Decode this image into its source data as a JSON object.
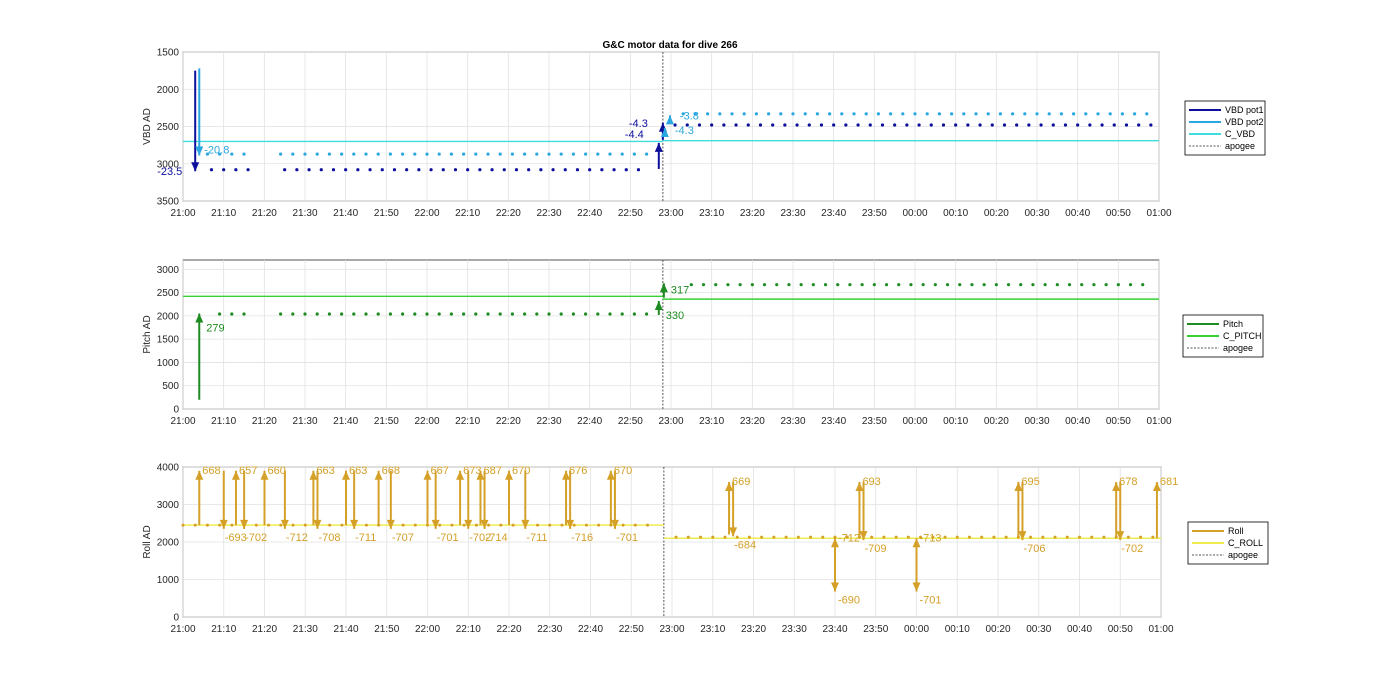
{
  "figure": {
    "title": "G&C motor data for dive 266"
  },
  "chart_data": [
    {
      "type": "line",
      "title": "G&C motor data for dive 266",
      "ylabel": "VBD AD",
      "ylim": [
        1500,
        3500
      ],
      "y_reversed": true,
      "yticks": [
        "1500",
        "2000",
        "2500",
        "3000",
        "3500"
      ],
      "xlim": [
        "21:00",
        "01:00"
      ],
      "xticks": [
        "21:00",
        "21:10",
        "21:20",
        "21:30",
        "21:40",
        "21:50",
        "22:00",
        "22:10",
        "22:20",
        "22:30",
        "22:40",
        "22:50",
        "23:00",
        "23:10",
        "23:20",
        "23:30",
        "23:40",
        "23:50",
        "00:00",
        "00:10",
        "00:20",
        "00:30",
        "00:40",
        "00:50",
        "01:00"
      ],
      "grid": true,
      "legend_location": "outside-right",
      "legend": [
        "VBD pot1",
        "VBD pot2",
        "C_VBD",
        "apogee"
      ],
      "colors": {
        "pot1": "#0d0f9b",
        "pot2": "#2aa7e0",
        "c_vbd": "#3fdcdc",
        "apogee": "#555555"
      },
      "apogee_time": "22:58",
      "c_vbd": [
        {
          "from": "21:00",
          "to": "22:58",
          "value": 2700
        },
        {
          "from": "22:58",
          "to": "01:00",
          "value": 2690
        }
      ],
      "pot1_dive_level": 3080,
      "pot1_climb_level": 2480,
      "pot2_dive_level": 2870,
      "pot2_climb_level": 2330,
      "pump_events": [
        {
          "series": "VBD pot1",
          "time": "21:03",
          "from": 1750,
          "to": 3100,
          "label": "-23.5"
        },
        {
          "series": "VBD pot2",
          "time": "21:04",
          "from": 1720,
          "to": 2890,
          "label": "-20.8"
        },
        {
          "series": "VBD pot1",
          "time": "22:57",
          "from": 3070,
          "to": 2720,
          "label": "-4.4"
        },
        {
          "series": "VBD pot1",
          "time": "22:58",
          "from": 2680,
          "to": 2450,
          "label": "-4.3"
        },
        {
          "series": "VBD pot2",
          "time": "22:58",
          "from": 2610,
          "to": 2520,
          "label": "-4.3"
        },
        {
          "series": "VBD pot2",
          "time": "22:59",
          "from": 2450,
          "to": 2350,
          "label": "-3.8"
        }
      ]
    },
    {
      "type": "line",
      "ylabel": "Pitch AD",
      "ylim": [
        0,
        3200
      ],
      "yticks": [
        "0",
        "500",
        "1000",
        "1500",
        "2000",
        "2500",
        "3000"
      ],
      "xlim": [
        "21:00",
        "01:00"
      ],
      "xticks": [
        "21:00",
        "21:10",
        "21:20",
        "21:30",
        "21:40",
        "21:50",
        "22:00",
        "22:10",
        "22:20",
        "22:30",
        "22:40",
        "22:50",
        "23:00",
        "23:10",
        "23:20",
        "23:30",
        "23:40",
        "23:50",
        "00:00",
        "00:10",
        "00:20",
        "00:30",
        "00:40",
        "00:50",
        "01:00"
      ],
      "grid": true,
      "legend_location": "outside-right",
      "legend": [
        "Pitch",
        "C_PITCH",
        "apogee"
      ],
      "colors": {
        "pitch": "#1e8b22",
        "c_pitch": "#34d234",
        "apogee": "#555555"
      },
      "apogee_time": "22:58",
      "c_pitch": [
        {
          "from": "21:00",
          "to": "22:58",
          "value": 2420
        },
        {
          "from": "22:58",
          "to": "01:00",
          "value": 2360
        }
      ],
      "pitch_dive_level": 2040,
      "pitch_climb_level": 2670,
      "move_events": [
        {
          "time": "21:04",
          "from": 200,
          "to": 2050,
          "label": "279"
        },
        {
          "time": "22:57",
          "from": 2020,
          "to": 2320,
          "label": "330"
        },
        {
          "time": "22:58",
          "from": 2390,
          "to": 2700,
          "label": "317"
        }
      ]
    },
    {
      "type": "line",
      "ylabel": "Roll AD",
      "ylim": [
        0,
        4000
      ],
      "yticks": [
        "0",
        "1000",
        "2000",
        "3000",
        "4000"
      ],
      "xlim": [
        "21:00",
        "01:00"
      ],
      "xticks": [
        "21:00",
        "21:10",
        "21:20",
        "21:30",
        "21:40",
        "21:50",
        "22:00",
        "22:10",
        "22:20",
        "22:30",
        "22:40",
        "22:50",
        "23:00",
        "23:10",
        "23:20",
        "23:30",
        "23:40",
        "23:50",
        "00:00",
        "00:10",
        "00:20",
        "00:30",
        "00:40",
        "00:50",
        "01:00"
      ],
      "grid": true,
      "legend_location": "outside-right",
      "legend": [
        "Roll",
        "C_ROLL",
        "apogee"
      ],
      "colors": {
        "roll": "#d4a028",
        "c_roll": "#f0ec50",
        "apogee": "#555555"
      },
      "apogee_time": "22:58",
      "c_roll": [
        {
          "from": "21:00",
          "to": "22:58",
          "value": 2450
        },
        {
          "from": "22:58",
          "to": "01:00",
          "value": 2100
        }
      ],
      "roll_dive_level": 2450,
      "roll_climb_level": 2130,
      "up_events": [
        {
          "time": "21:04",
          "label": "668",
          "top": 3900
        },
        {
          "time": "21:13",
          "label": "657",
          "top": 3900
        },
        {
          "time": "21:20",
          "label": "660",
          "top": 3900
        },
        {
          "time": "21:32",
          "label": "663",
          "top": 3900
        },
        {
          "time": "21:40",
          "label": "663",
          "top": 3900
        },
        {
          "time": "21:48",
          "label": "668",
          "top": 3900
        },
        {
          "time": "22:00",
          "label": "667",
          "top": 3900
        },
        {
          "time": "22:08",
          "label": "673",
          "top": 3900
        },
        {
          "time": "22:13",
          "label": "687",
          "top": 3900
        },
        {
          "time": "22:20",
          "label": "670",
          "top": 3900
        },
        {
          "time": "22:34",
          "label": "676",
          "top": 3900
        },
        {
          "time": "22:45",
          "label": "670",
          "top": 3900
        },
        {
          "time": "23:14",
          "label": "669",
          "top": 3600,
          "base": 2200
        },
        {
          "time": "23:46",
          "label": "693",
          "top": 3600,
          "base": 2100
        },
        {
          "time": "00:25",
          "label": "695",
          "top": 3600,
          "base": 2100
        },
        {
          "time": "00:49",
          "label": "678",
          "top": 3600,
          "base": 2100
        },
        {
          "time": "00:59",
          "label": "681",
          "top": 3600,
          "base": 2100
        }
      ],
      "down_events": [
        {
          "time": "21:10",
          "label": "-693",
          "bottom": 2350
        },
        {
          "time": "21:15",
          "label": "-702",
          "bottom": 2350
        },
        {
          "time": "21:25",
          "label": "-712",
          "bottom": 2350
        },
        {
          "time": "21:33",
          "label": "-708",
          "bottom": 2350
        },
        {
          "time": "21:42",
          "label": "-711",
          "bottom": 2350
        },
        {
          "time": "21:51",
          "label": "-707",
          "bottom": 2350
        },
        {
          "time": "22:02",
          "label": "-701",
          "bottom": 2350
        },
        {
          "time": "22:10",
          "label": "-702",
          "bottom": 2350
        },
        {
          "time": "22:14",
          "label": "-714",
          "bottom": 2350
        },
        {
          "time": "22:24",
          "label": "-711",
          "bottom": 2350
        },
        {
          "time": "22:35",
          "label": "-716",
          "bottom": 2350
        },
        {
          "time": "22:46",
          "label": "-701",
          "bottom": 2350
        },
        {
          "time": "23:15",
          "label": "-684",
          "bottom": 2150
        },
        {
          "time": "23:47",
          "label": "-709",
          "bottom": 2050
        },
        {
          "time": "00:26",
          "label": "-706",
          "bottom": 2050
        },
        {
          "time": "00:50",
          "label": "-702",
          "bottom": 2050
        }
      ],
      "deep_events": [
        {
          "time": "23:40",
          "label": "-690",
          "top_label": "-712",
          "bottom": 680,
          "top": 2100
        },
        {
          "time": "00:00",
          "label": "-701",
          "top_label": "-713",
          "bottom": 680,
          "top": 2100
        }
      ]
    }
  ]
}
